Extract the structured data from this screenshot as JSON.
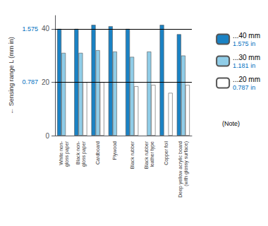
{
  "chart_data": {
    "type": "bar",
    "y_label": "← Sensing range L (mm in)",
    "categories": [
      "White non-\ngloss paper",
      "Black non-\ngloss paper",
      "Cardboard",
      "Plywood",
      "Black rubber",
      "Black rubber\nleather type",
      "Copper foil",
      "Deep yellow acrylic board\n(with glossy surface)"
    ],
    "series": [
      {
        "name": "...40 mm",
        "subtitle": "1.575 in",
        "color": "#1a82c4",
        "values": [
          40,
          40,
          41.5,
          41,
          40,
          null,
          41.5,
          38
        ]
      },
      {
        "name": "...30 mm",
        "subtitle": "1.181 in",
        "color": "#90cde8",
        "values": [
          31,
          31,
          32,
          31.5,
          29.5,
          31.5,
          null,
          30
        ]
      },
      {
        "name": "...20 mm",
        "subtitle": "0.787 in",
        "color": "#ffffff",
        "values": [
          null,
          20,
          20,
          null,
          18.5,
          19,
          16,
          19
        ]
      }
    ],
    "reference_lines": [
      20,
      40
    ],
    "annotations": [
      {
        "text": "0.787",
        "y": 20
      },
      {
        "text": "1.575",
        "y": 40
      },
      {
        "text": "(Note)"
      }
    ],
    "ylim": [
      0,
      45
    ],
    "yticks": [
      0,
      20,
      40
    ],
    "grid": false,
    "legend": "right"
  }
}
